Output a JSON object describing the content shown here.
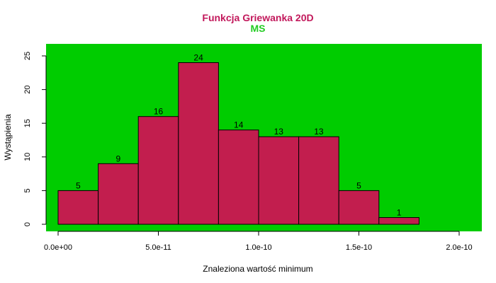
{
  "chart_data": {
    "type": "bar",
    "title": "Funkcja Griewanka 20D",
    "subtitle": "MS",
    "xlabel": "Znaleziona wartość minimum",
    "ylabel": "Wystąpienia",
    "bin_edges": [
      0,
      2e-11,
      4e-11,
      6e-11,
      8e-11,
      1e-10,
      1.2e-10,
      1.4e-10,
      1.6e-10,
      1.8e-10
    ],
    "values": [
      5,
      9,
      16,
      24,
      14,
      13,
      13,
      5,
      1
    ],
    "data_labels": [
      "5",
      "9",
      "16",
      "24",
      "14",
      "13",
      "13",
      "5",
      "1"
    ],
    "x_ticks": [
      0,
      5e-11,
      1e-10,
      1.5e-10,
      2e-10
    ],
    "x_tick_labels": [
      "0.0e+00",
      "5.0e-11",
      "1.0e-10",
      "1.5e-10",
      "2.0e-10"
    ],
    "y_ticks": [
      0,
      5,
      10,
      15,
      20,
      25
    ],
    "y_tick_labels": [
      "0",
      "5",
      "10",
      "15",
      "20",
      "25"
    ],
    "xlim": [
      -7.2e-12,
      2e-10
    ],
    "ylim": [
      0,
      26
    ],
    "grid": false,
    "colors": {
      "title": "#c2185b",
      "subtitle": "#22cc22",
      "plot_background": "#00cc00",
      "bar_fill": "#c21e4e",
      "bar_stroke": "#000000"
    }
  }
}
